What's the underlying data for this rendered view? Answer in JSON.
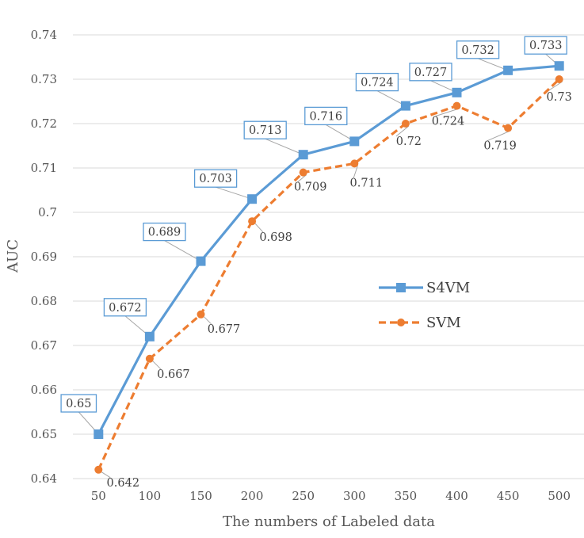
{
  "chart_data": {
    "type": "line",
    "title": "",
    "xlabel": "The numbers of Labeled data",
    "ylabel": "AUC",
    "categories": [
      "50",
      "100",
      "150",
      "200",
      "250",
      "300",
      "350",
      "400",
      "450",
      "500"
    ],
    "ylim": [
      0.64,
      0.74
    ],
    "yticks": [
      0.64,
      0.65,
      0.66,
      0.67,
      0.68,
      0.69,
      0.7,
      0.71,
      0.72,
      0.73,
      0.74
    ],
    "grid": true,
    "legend_position": "right-center",
    "series": [
      {
        "name": "S4VM",
        "values": [
          0.65,
          0.672,
          0.689,
          0.703,
          0.713,
          0.716,
          0.724,
          0.727,
          0.732,
          0.733
        ],
        "color": "#5B9BD5",
        "line_style": "solid",
        "marker": "square",
        "label_style": "boxed-above"
      },
      {
        "name": "SVM",
        "values": [
          0.642,
          0.667,
          0.677,
          0.698,
          0.709,
          0.711,
          0.72,
          0.724,
          0.719,
          0.73
        ],
        "color": "#ED7D31",
        "line_style": "dashed",
        "marker": "circle",
        "label_style": "below-right"
      }
    ]
  }
}
